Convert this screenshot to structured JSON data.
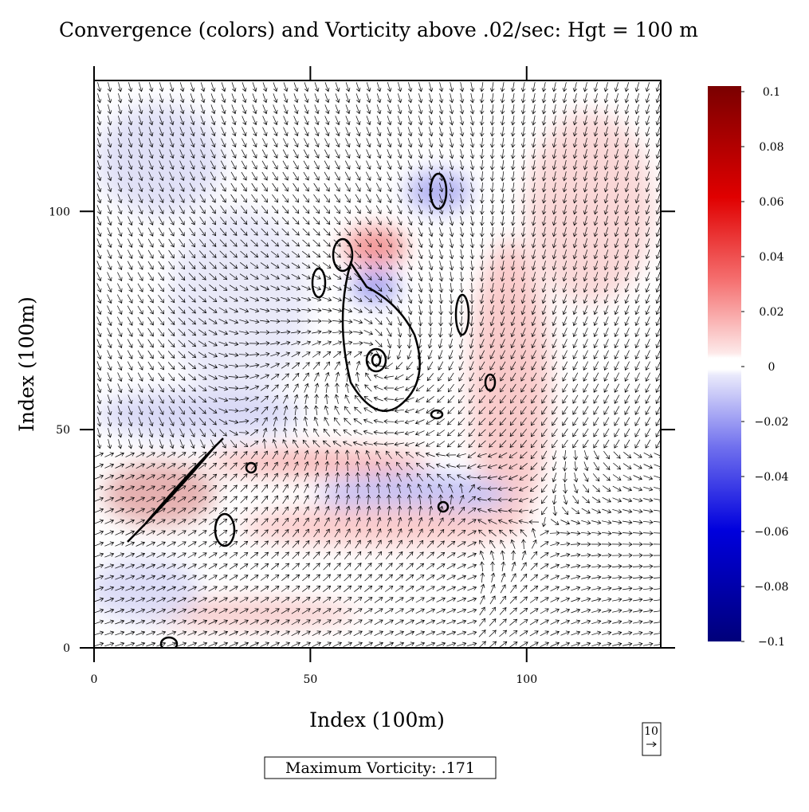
{
  "chart_data": {
    "type": "vector-field",
    "title": "Convergence (colors) and Vorticity above .02/sec: Hgt = 100 m",
    "x_label": "Index (100m)",
    "y_label": "Index (100m)",
    "xlim": [
      0,
      131
    ],
    "ylim": [
      0,
      130
    ],
    "xticks": [
      0,
      50,
      100
    ],
    "yticks": [
      0,
      50,
      100
    ],
    "colorbar": {
      "lim": [
        -0.1,
        0.1
      ],
      "ticks": [
        0.1,
        0.08,
        0.06,
        0.04,
        0.02,
        0,
        {
          "value": -0.02,
          "label": "−0.02"
        },
        {
          "value": -0.04,
          "label": "−0.04"
        },
        {
          "value": -0.06,
          "label": "−0.06"
        },
        {
          "value": -0.08,
          "label": "−0.08"
        },
        {
          "value": -0.1,
          "label": "−0.1"
        }
      ]
    },
    "reference_vector": "10",
    "annotation": "Maximum Vorticity: .171"
  }
}
